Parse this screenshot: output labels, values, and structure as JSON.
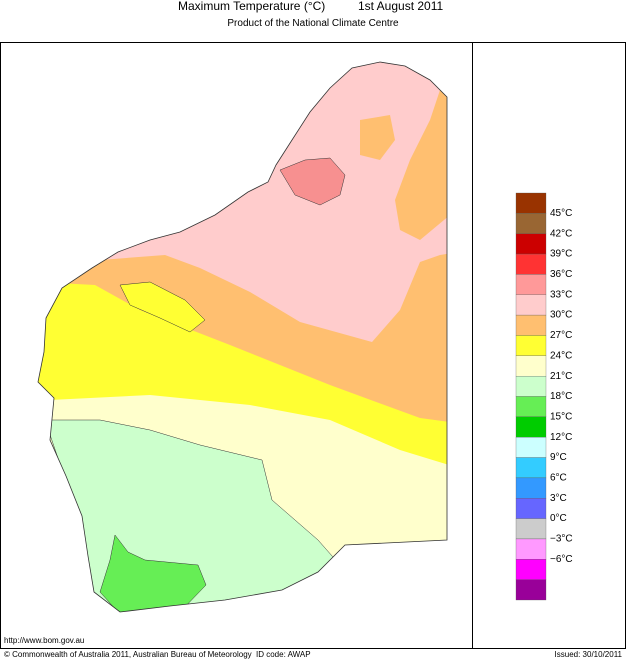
{
  "header": {
    "title": "Maximum Temperature (°C)",
    "date": "1st August 2011",
    "subtitle": "Product of the National Climate Centre"
  },
  "legend": {
    "labels": [
      "45°C",
      "42°C",
      "39°C",
      "36°C",
      "33°C",
      "30°C",
      "27°C",
      "24°C",
      "21°C",
      "18°C",
      "15°C",
      "12°C",
      "9°C",
      "6°C",
      "3°C",
      "0°C",
      "−3°C",
      "−6°C"
    ],
    "colors": [
      "#993300",
      "#996633",
      "#cc0000",
      "#ff3333",
      "#ff9999",
      "#ffcccc",
      "#ffbf70",
      "#ffff33",
      "#ffffcc",
      "#ccffcc",
      "#66ee55",
      "#00cc00",
      "#ccffff",
      "#33ccff",
      "#3399ff",
      "#6666ff",
      "#cccccc",
      "#ff99ff",
      "#ff00ff",
      "#990099"
    ]
  },
  "footer": {
    "url": "http://www.bom.gov.au",
    "copyright": "© Commonwealth of Australia 2011, Australian Bureau of Meteorology",
    "id_code": "ID code: AWAP",
    "issued": "Issued: 30/10/2011"
  }
}
